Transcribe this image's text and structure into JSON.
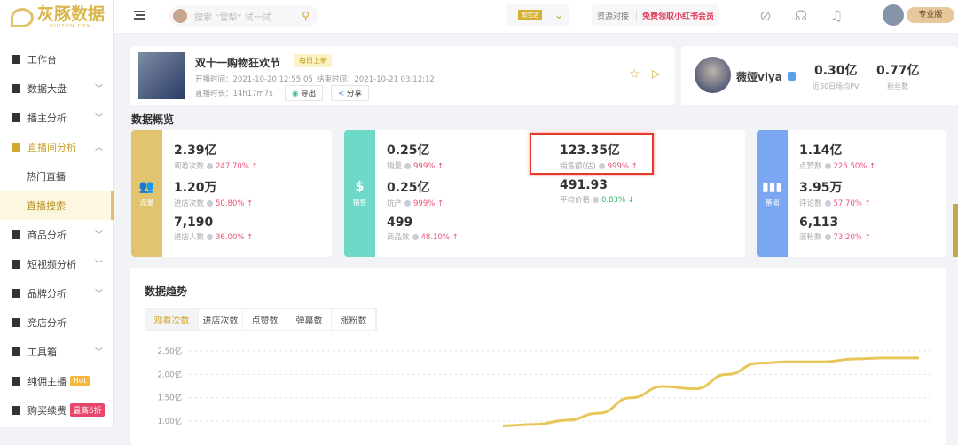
{
  "brand": {
    "name": "灰豚数据",
    "sub": "HUITUN.COM"
  },
  "sidebar": {
    "items": [
      {
        "label": "工作台",
        "icon": "grid-icon",
        "chev": false
      },
      {
        "label": "数据大盘",
        "icon": "pie-icon",
        "chev": true
      },
      {
        "label": "播主分析",
        "icon": "mic-icon",
        "chev": true
      },
      {
        "label": "直播间分析",
        "icon": "tv-icon",
        "chev": true,
        "active": true
      },
      {
        "label": "热门直播",
        "sub": true
      },
      {
        "label": "直播搜索",
        "sub": true,
        "selected": true
      },
      {
        "label": "商品分析",
        "icon": "bag-icon",
        "chev": true
      },
      {
        "label": "短视频分析",
        "icon": "video-icon",
        "chev": true
      },
      {
        "label": "品牌分析",
        "icon": "ring-icon",
        "chev": true
      },
      {
        "label": "竞店分析",
        "icon": "store-icon",
        "chev": false
      },
      {
        "label": "工具箱",
        "icon": "toolbox-icon",
        "chev": true
      },
      {
        "label": "纯佣主播",
        "icon": "person-icon",
        "chev": false,
        "badge": "Hot",
        "badge_color": "#f5b83d"
      },
      {
        "label": "购买续费",
        "icon": "card-icon",
        "chev": false,
        "badge": "最高6折",
        "badge_color": "#e8456a"
      }
    ]
  },
  "topbar": {
    "search_placeholder": "搜索 “雪梨” 试一试",
    "shop_tag": "淘宝店",
    "resource": "资源对接",
    "vip": "免费领取小红书会员",
    "pro": "专业版"
  },
  "live": {
    "title": "双十一购物狂欢节",
    "daily": "每日上新",
    "start": "开播时间：2021-10-20 12:55:05",
    "end": "结束时间：2021-10-21 03:12:12",
    "duration": "直播时长：14h17m7s",
    "export": "导出",
    "share": "分享"
  },
  "anchor": {
    "name": "薇娅viya",
    "pv": "0.30亿",
    "pv_label": "近30日场均PV",
    "fans": "0.77亿",
    "fans_label": "粉丝数"
  },
  "overview_title": "数据概览",
  "groups": [
    {
      "label": "流量",
      "color": "#e2c46e",
      "metrics": [
        {
          "value": "2.39亿",
          "label": "观看次数",
          "change": "247.70%",
          "dir": "up"
        },
        {
          "value": "1.20万",
          "label": "进店次数",
          "change": "50.80%",
          "dir": "up"
        },
        {
          "value": "7,190",
          "label": "进店人数",
          "change": "36.00%",
          "dir": "up"
        }
      ]
    },
    {
      "label": "销售",
      "color": "#6ed9c6",
      "metrics": [
        {
          "value": "0.25亿",
          "label": "销量",
          "change": "999%",
          "dir": "up"
        },
        {
          "value": "0.25亿",
          "label": "坑产",
          "change": "999%",
          "dir": "up"
        },
        {
          "value": "499",
          "label": "商品数",
          "change": "48.10%",
          "dir": "up"
        },
        {
          "value": "123.35亿",
          "label": "销售额(估)",
          "change": "999%",
          "dir": "up"
        },
        {
          "value": "491.93",
          "label": "平均价格",
          "change": "0.83%",
          "dir": "down"
        }
      ]
    },
    {
      "label": "基础",
      "color": "#7ba7f2",
      "metrics": [
        {
          "value": "1.14亿",
          "label": "点赞数",
          "change": "225.50%",
          "dir": "up"
        },
        {
          "value": "3.95万",
          "label": "评论数",
          "change": "57.70%",
          "dir": "up"
        },
        {
          "value": "6,113",
          "label": "涨粉数",
          "change": "73.20%",
          "dir": "up"
        }
      ]
    }
  ],
  "trend": {
    "title": "数据趋势",
    "tabs": [
      "观看次数",
      "进店次数",
      "点赞数",
      "弹幕数",
      "涨粉数"
    ],
    "active_tab": 0
  },
  "chart_data": {
    "type": "line",
    "yticks": [
      "2.50亿",
      "2.00亿",
      "1.50亿",
      "1.00亿"
    ],
    "ylim_visible": [
      1.0,
      2.5
    ],
    "grid": true,
    "color": "#e8c65a",
    "values": [
      0.9,
      0.93,
      1.02,
      1.17,
      1.5,
      1.74,
      1.69,
      2.0,
      2.24,
      2.27,
      2.27,
      2.33,
      2.35,
      2.35
    ]
  }
}
